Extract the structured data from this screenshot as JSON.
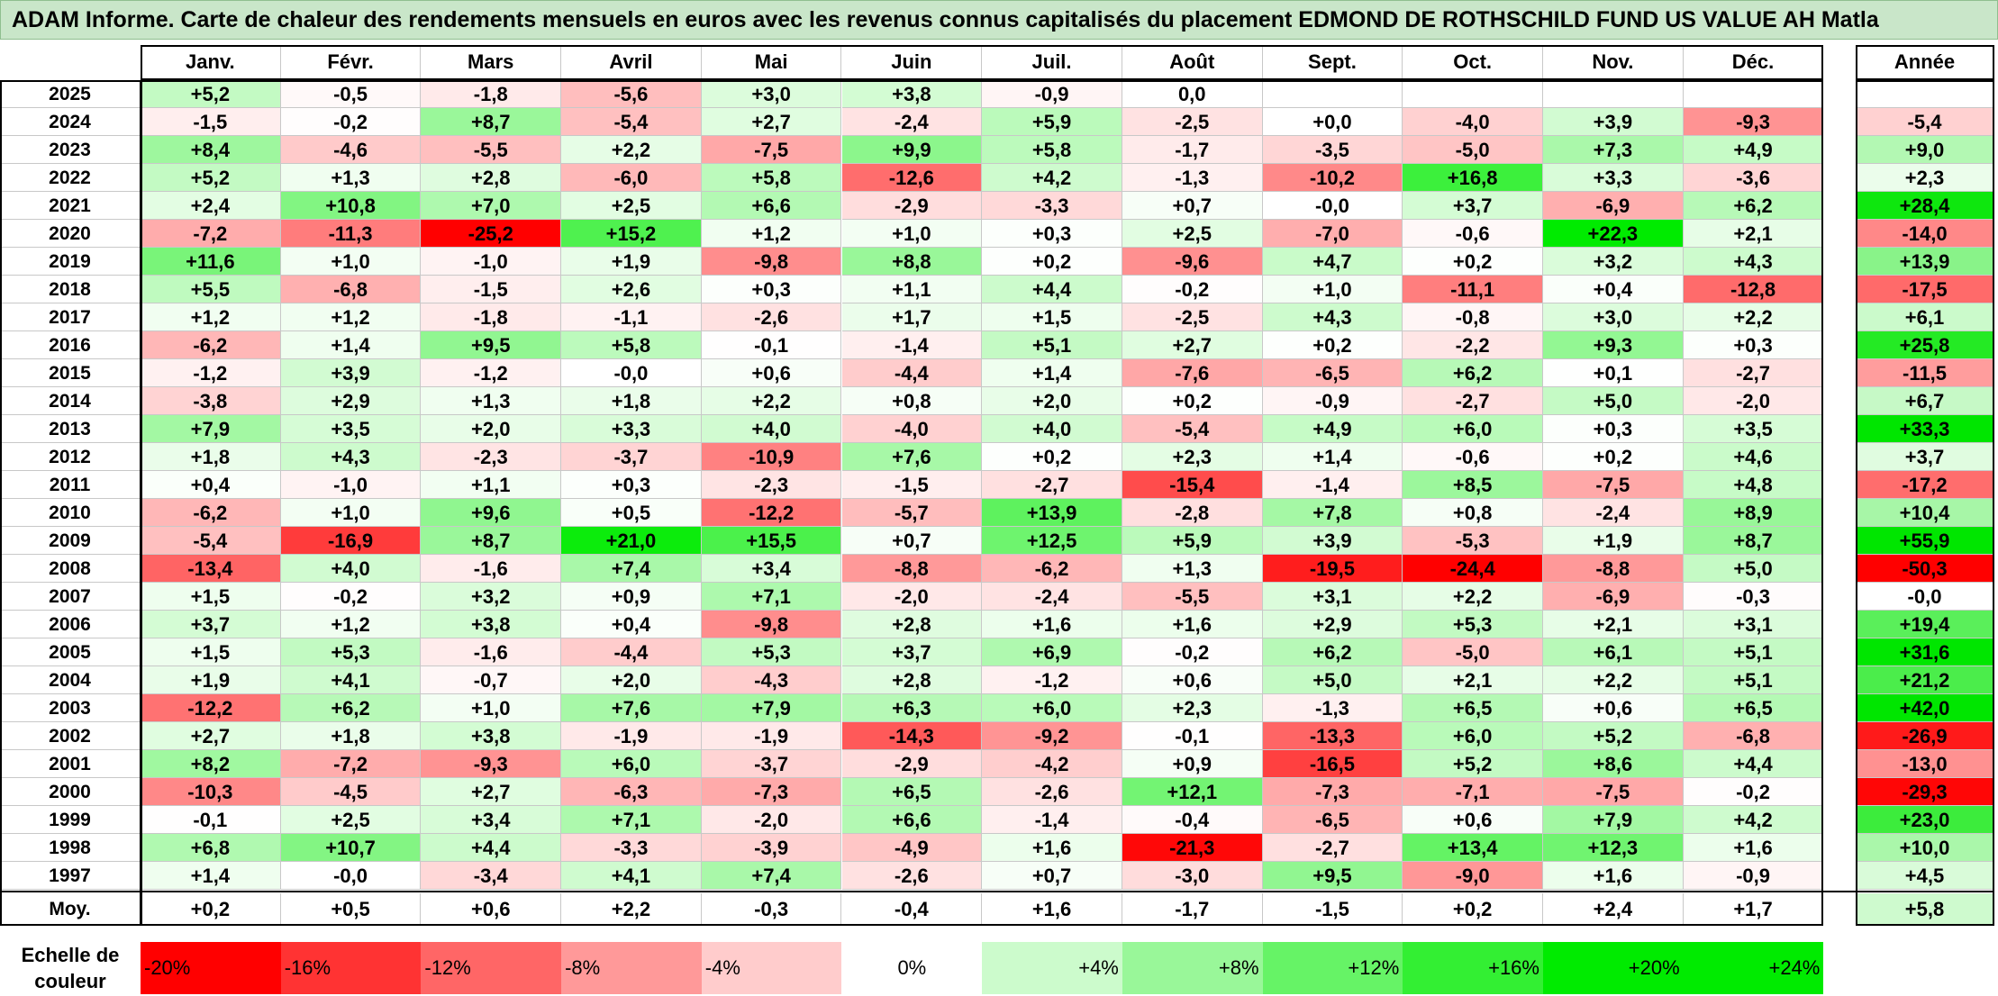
{
  "title": "ADAM Informe. Carte de chaleur des rendements mensuels en euros avec les revenus connus capitalisés du placement EDMOND DE ROTHSCHILD FUND US VALUE AH Matla",
  "colors": {
    "negative": "#ff0000",
    "neutral": "#ffffff",
    "positive": "#00e600"
  },
  "chart_data": {
    "type": "heatmap",
    "title": "ADAM Informe. Carte de chaleur des rendements mensuels en euros avec les revenus connus capitalisés du placement EDMOND DE ROTHSCHILD FUND US VALUE AH Matla",
    "columns": [
      "Janv.",
      "Févr.",
      "Mars",
      "Avril",
      "Mai",
      "Juin",
      "Juil.",
      "Août",
      "Sept.",
      "Oct.",
      "Nov.",
      "Déc."
    ],
    "annual_header": "Année",
    "rows": [
      {
        "year": "2025",
        "values": [
          "+5,2",
          "-0,5",
          "-1,8",
          "-5,6",
          "+3,0",
          "+3,8",
          "-0,9",
          "0,0",
          "",
          "",
          "",
          ""
        ],
        "annual": ""
      },
      {
        "year": "2024",
        "values": [
          "-1,5",
          "-0,2",
          "+8,7",
          "-5,4",
          "+2,7",
          "-2,4",
          "+5,9",
          "-2,5",
          "+0,0",
          "-4,0",
          "+3,9",
          "-9,3"
        ],
        "annual": "-5,4"
      },
      {
        "year": "2023",
        "values": [
          "+8,4",
          "-4,6",
          "-5,5",
          "+2,2",
          "-7,5",
          "+9,9",
          "+5,8",
          "-1,7",
          "-3,5",
          "-5,0",
          "+7,3",
          "+4,9"
        ],
        "annual": "+9,0"
      },
      {
        "year": "2022",
        "values": [
          "+5,2",
          "+1,3",
          "+2,8",
          "-6,0",
          "+5,8",
          "-12,6",
          "+4,2",
          "-1,3",
          "-10,2",
          "+16,8",
          "+3,3",
          "-3,6"
        ],
        "annual": "+2,3"
      },
      {
        "year": "2021",
        "values": [
          "+2,4",
          "+10,8",
          "+7,0",
          "+2,5",
          "+6,6",
          "-2,9",
          "-3,3",
          "+0,7",
          "-0,0",
          "+3,7",
          "-6,9",
          "+6,2"
        ],
        "annual": "+28,4"
      },
      {
        "year": "2020",
        "values": [
          "-7,2",
          "-11,3",
          "-25,2",
          "+15,2",
          "+1,2",
          "+1,0",
          "+0,3",
          "+2,5",
          "-7,0",
          "-0,6",
          "+22,3",
          "+2,1"
        ],
        "annual": "-14,0"
      },
      {
        "year": "2019",
        "values": [
          "+11,6",
          "+1,0",
          "-1,0",
          "+1,9",
          "-9,8",
          "+8,8",
          "+0,2",
          "-9,6",
          "+4,7",
          "+0,2",
          "+3,2",
          "+4,3"
        ],
        "annual": "+13,9"
      },
      {
        "year": "2018",
        "values": [
          "+5,5",
          "-6,8",
          "-1,5",
          "+2,6",
          "+0,3",
          "+1,1",
          "+4,4",
          "-0,2",
          "+1,0",
          "-11,1",
          "+0,4",
          "-12,8"
        ],
        "annual": "-17,5"
      },
      {
        "year": "2017",
        "values": [
          "+1,2",
          "+1,2",
          "-1,8",
          "-1,1",
          "-2,6",
          "+1,7",
          "+1,5",
          "-2,5",
          "+4,3",
          "-0,8",
          "+3,0",
          "+2,2"
        ],
        "annual": "+6,1"
      },
      {
        "year": "2016",
        "values": [
          "-6,2",
          "+1,4",
          "+9,5",
          "+5,8",
          "-0,1",
          "-1,4",
          "+5,1",
          "+2,7",
          "+0,2",
          "-2,2",
          "+9,3",
          "+0,3"
        ],
        "annual": "+25,8"
      },
      {
        "year": "2015",
        "values": [
          "-1,2",
          "+3,9",
          "-1,2",
          "-0,0",
          "+0,6",
          "-4,4",
          "+1,4",
          "-7,6",
          "-6,5",
          "+6,2",
          "+0,1",
          "-2,7"
        ],
        "annual": "-11,5"
      },
      {
        "year": "2014",
        "values": [
          "-3,8",
          "+2,9",
          "+1,3",
          "+1,8",
          "+2,2",
          "+0,8",
          "+2,0",
          "+0,2",
          "-0,9",
          "-2,7",
          "+5,0",
          "-2,0"
        ],
        "annual": "+6,7"
      },
      {
        "year": "2013",
        "values": [
          "+7,9",
          "+3,5",
          "+2,0",
          "+3,3",
          "+4,0",
          "-4,0",
          "+4,0",
          "-5,4",
          "+4,9",
          "+6,0",
          "+0,3",
          "+3,5"
        ],
        "annual": "+33,3"
      },
      {
        "year": "2012",
        "values": [
          "+1,8",
          "+4,3",
          "-2,3",
          "-3,7",
          "-10,9",
          "+7,6",
          "+0,2",
          "+2,3",
          "+1,4",
          "-0,6",
          "+0,2",
          "+4,6"
        ],
        "annual": "+3,7"
      },
      {
        "year": "2011",
        "values": [
          "+0,4",
          "-1,0",
          "+1,1",
          "+0,3",
          "-2,3",
          "-1,5",
          "-2,7",
          "-15,4",
          "-1,4",
          "+8,5",
          "-7,5",
          "+4,8"
        ],
        "annual": "-17,2"
      },
      {
        "year": "2010",
        "values": [
          "-6,2",
          "+1,0",
          "+9,6",
          "+0,5",
          "-12,2",
          "-5,7",
          "+13,9",
          "-2,8",
          "+7,8",
          "+0,8",
          "-2,4",
          "+8,9"
        ],
        "annual": "+10,4"
      },
      {
        "year": "2009",
        "values": [
          "-5,4",
          "-16,9",
          "+8,7",
          "+21,0",
          "+15,5",
          "+0,7",
          "+12,5",
          "+5,9",
          "+3,9",
          "-5,3",
          "+1,9",
          "+8,7"
        ],
        "annual": "+55,9"
      },
      {
        "year": "2008",
        "values": [
          "-13,4",
          "+4,0",
          "-1,6",
          "+7,4",
          "+3,4",
          "-8,8",
          "-6,2",
          "+1,3",
          "-19,5",
          "-24,4",
          "-8,8",
          "+5,0"
        ],
        "annual": "-50,3"
      },
      {
        "year": "2007",
        "values": [
          "+1,5",
          "-0,2",
          "+3,2",
          "+0,9",
          "+7,1",
          "-2,0",
          "-2,4",
          "-5,5",
          "+3,1",
          "+2,2",
          "-6,9",
          "-0,3"
        ],
        "annual": "-0,0"
      },
      {
        "year": "2006",
        "values": [
          "+3,7",
          "+1,2",
          "+3,8",
          "+0,4",
          "-9,8",
          "+2,8",
          "+1,6",
          "+1,6",
          "+2,9",
          "+5,3",
          "+2,1",
          "+3,1"
        ],
        "annual": "+19,4"
      },
      {
        "year": "2005",
        "values": [
          "+1,5",
          "+5,3",
          "-1,6",
          "-4,4",
          "+5,3",
          "+3,7",
          "+6,9",
          "-0,2",
          "+6,2",
          "-5,0",
          "+6,1",
          "+5,1"
        ],
        "annual": "+31,6"
      },
      {
        "year": "2004",
        "values": [
          "+1,9",
          "+4,1",
          "-0,7",
          "+2,0",
          "-4,3",
          "+2,8",
          "-1,2",
          "+0,6",
          "+5,0",
          "+2,1",
          "+2,2",
          "+5,1"
        ],
        "annual": "+21,2"
      },
      {
        "year": "2003",
        "values": [
          "-12,2",
          "+6,2",
          "+1,0",
          "+7,6",
          "+7,9",
          "+6,3",
          "+6,0",
          "+2,3",
          "-1,3",
          "+6,5",
          "+0,6",
          "+6,5"
        ],
        "annual": "+42,0"
      },
      {
        "year": "2002",
        "values": [
          "+2,7",
          "+1,8",
          "+3,8",
          "-1,9",
          "-1,9",
          "-14,3",
          "-9,2",
          "-0,1",
          "-13,3",
          "+6,0",
          "+5,2",
          "-6,8"
        ],
        "annual": "-26,9"
      },
      {
        "year": "2001",
        "values": [
          "+8,2",
          "-7,2",
          "-9,3",
          "+6,0",
          "-3,7",
          "-2,9",
          "-4,2",
          "+0,9",
          "-16,5",
          "+5,2",
          "+8,6",
          "+4,4"
        ],
        "annual": "-13,0"
      },
      {
        "year": "2000",
        "values": [
          "-10,3",
          "-4,5",
          "+2,7",
          "-6,3",
          "-7,3",
          "+6,5",
          "-2,6",
          "+12,1",
          "-7,3",
          "-7,1",
          "-7,5",
          "-0,2"
        ],
        "annual": "-29,3"
      },
      {
        "year": "1999",
        "values": [
          "-0,1",
          "+2,5",
          "+3,4",
          "+7,1",
          "-2,0",
          "+6,6",
          "-1,4",
          "-0,4",
          "-6,5",
          "+0,6",
          "+7,9",
          "+4,2"
        ],
        "annual": "+23,0"
      },
      {
        "year": "1998",
        "values": [
          "+6,8",
          "+10,7",
          "+4,4",
          "-3,3",
          "-3,9",
          "-4,9",
          "+1,6",
          "-21,3",
          "-2,7",
          "+13,4",
          "+12,3",
          "+1,6"
        ],
        "annual": "+10,0"
      },
      {
        "year": "1997",
        "values": [
          "+1,4",
          "-0,0",
          "-3,4",
          "+4,1",
          "+7,4",
          "-2,6",
          "+0,7",
          "-3,0",
          "+9,5",
          "-9,0",
          "+1,6",
          "-0,9"
        ],
        "annual": "+4,5"
      }
    ],
    "average": {
      "label": "Moy.",
      "values": [
        "+0,2",
        "+0,5",
        "+0,6",
        "+2,2",
        "-0,3",
        "-0,4",
        "+1,6",
        "-1,7",
        "-1,5",
        "+0,2",
        "+2,4",
        "+1,7"
      ],
      "annual": "+5,8"
    },
    "scale": {
      "title_line1": "Echelle de",
      "title_line2": "couleur",
      "labels": [
        "-20%",
        "-16%",
        "-12%",
        "-8%",
        "-4%",
        "0%",
        "+4%",
        "+8%",
        "+12%",
        "+16%",
        "+20%",
        "+24%"
      ],
      "values": [
        -20,
        -16,
        -12,
        -8,
        -4,
        0,
        4,
        8,
        12,
        16,
        20,
        24
      ]
    }
  }
}
